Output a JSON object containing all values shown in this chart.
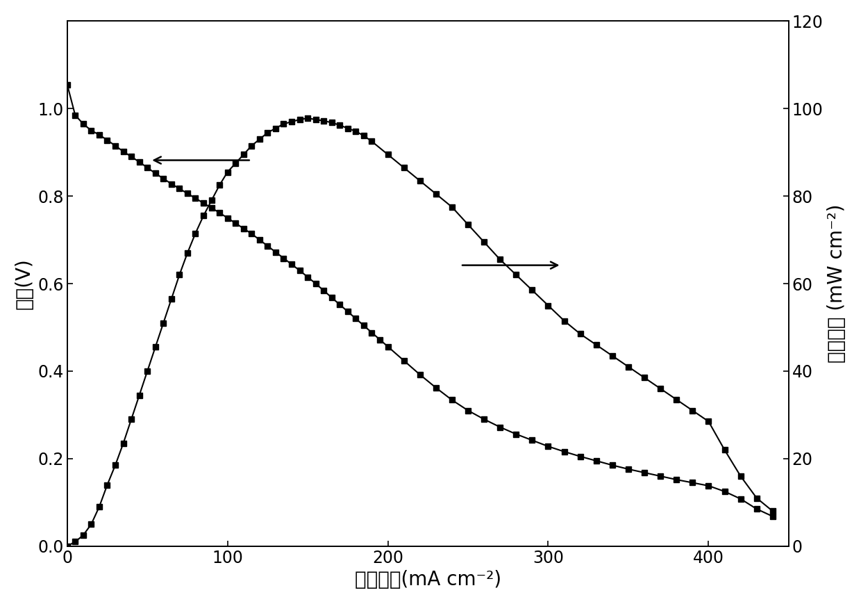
{
  "voltage_current": [
    [
      0,
      1.055
    ],
    [
      5,
      0.985
    ],
    [
      10,
      0.965
    ],
    [
      15,
      0.95
    ],
    [
      20,
      0.94
    ],
    [
      25,
      0.928
    ],
    [
      30,
      0.915
    ],
    [
      35,
      0.902
    ],
    [
      40,
      0.89
    ],
    [
      45,
      0.878
    ],
    [
      50,
      0.865
    ],
    [
      55,
      0.852
    ],
    [
      60,
      0.84
    ],
    [
      65,
      0.828
    ],
    [
      70,
      0.817
    ],
    [
      75,
      0.806
    ],
    [
      80,
      0.795
    ],
    [
      85,
      0.784
    ],
    [
      90,
      0.773
    ],
    [
      95,
      0.762
    ],
    [
      100,
      0.75
    ],
    [
      105,
      0.738
    ],
    [
      110,
      0.726
    ],
    [
      115,
      0.714
    ],
    [
      120,
      0.7
    ],
    [
      125,
      0.686
    ],
    [
      130,
      0.672
    ],
    [
      135,
      0.658
    ],
    [
      140,
      0.644
    ],
    [
      145,
      0.63
    ],
    [
      150,
      0.615
    ],
    [
      155,
      0.6
    ],
    [
      160,
      0.584
    ],
    [
      165,
      0.568
    ],
    [
      170,
      0.552
    ],
    [
      175,
      0.536
    ],
    [
      180,
      0.52
    ],
    [
      185,
      0.504
    ],
    [
      190,
      0.488
    ],
    [
      195,
      0.472
    ],
    [
      200,
      0.456
    ],
    [
      210,
      0.424
    ],
    [
      220,
      0.392
    ],
    [
      230,
      0.362
    ],
    [
      240,
      0.334
    ],
    [
      250,
      0.31
    ],
    [
      260,
      0.29
    ],
    [
      270,
      0.272
    ],
    [
      280,
      0.256
    ],
    [
      290,
      0.242
    ],
    [
      300,
      0.228
    ],
    [
      310,
      0.216
    ],
    [
      320,
      0.205
    ],
    [
      330,
      0.195
    ],
    [
      340,
      0.185
    ],
    [
      350,
      0.176
    ],
    [
      360,
      0.168
    ],
    [
      370,
      0.16
    ],
    [
      380,
      0.152
    ],
    [
      390,
      0.145
    ],
    [
      400,
      0.138
    ],
    [
      410,
      0.125
    ],
    [
      420,
      0.108
    ],
    [
      430,
      0.085
    ],
    [
      440,
      0.068
    ]
  ],
  "power_current": [
    [
      0,
      0.0
    ],
    [
      5,
      1.0
    ],
    [
      10,
      2.5
    ],
    [
      15,
      5.0
    ],
    [
      20,
      9.0
    ],
    [
      25,
      14.0
    ],
    [
      30,
      18.5
    ],
    [
      35,
      23.5
    ],
    [
      40,
      29.0
    ],
    [
      45,
      34.5
    ],
    [
      50,
      40.0
    ],
    [
      55,
      45.5
    ],
    [
      60,
      51.0
    ],
    [
      65,
      56.5
    ],
    [
      70,
      62.0
    ],
    [
      75,
      67.0
    ],
    [
      80,
      71.5
    ],
    [
      85,
      75.5
    ],
    [
      90,
      79.0
    ],
    [
      95,
      82.5
    ],
    [
      100,
      85.5
    ],
    [
      105,
      87.5
    ],
    [
      110,
      89.5
    ],
    [
      115,
      91.5
    ],
    [
      120,
      93.0
    ],
    [
      125,
      94.5
    ],
    [
      130,
      95.5
    ],
    [
      135,
      96.5
    ],
    [
      140,
      97.0
    ],
    [
      145,
      97.5
    ],
    [
      150,
      97.8
    ],
    [
      155,
      97.5
    ],
    [
      160,
      97.2
    ],
    [
      165,
      96.8
    ],
    [
      170,
      96.2
    ],
    [
      175,
      95.5
    ],
    [
      180,
      94.8
    ],
    [
      185,
      93.8
    ],
    [
      190,
      92.5
    ],
    [
      200,
      89.5
    ],
    [
      210,
      86.5
    ],
    [
      220,
      83.5
    ],
    [
      230,
      80.5
    ],
    [
      240,
      77.5
    ],
    [
      250,
      73.5
    ],
    [
      260,
      69.5
    ],
    [
      270,
      65.5
    ],
    [
      280,
      62.0
    ],
    [
      290,
      58.5
    ],
    [
      300,
      55.0
    ],
    [
      310,
      51.5
    ],
    [
      320,
      48.5
    ],
    [
      330,
      46.0
    ],
    [
      340,
      43.5
    ],
    [
      350,
      41.0
    ],
    [
      360,
      38.5
    ],
    [
      370,
      36.0
    ],
    [
      380,
      33.5
    ],
    [
      390,
      31.0
    ],
    [
      400,
      28.5
    ],
    [
      410,
      22.0
    ],
    [
      420,
      16.0
    ],
    [
      430,
      11.0
    ],
    [
      440,
      8.0
    ]
  ],
  "xlim": [
    0,
    450
  ],
  "ylim_left": [
    0,
    1.2
  ],
  "ylim_right": [
    0,
    120
  ],
  "xticks": [
    0,
    100,
    200,
    300,
    400
  ],
  "yticks_left": [
    0.0,
    0.2,
    0.4,
    0.6,
    0.8,
    1.0
  ],
  "yticks_right": [
    0,
    20,
    40,
    60,
    80,
    100,
    120
  ],
  "xlabel": "电流密度(mA cm⁻²)",
  "ylabel_left": "电压(V)",
  "ylabel_right": "功率密度 (mW cm⁻²)",
  "marker": "s",
  "color": "#000000",
  "linewidth": 1.5,
  "markersize": 6,
  "fontsize_label": 20,
  "fontsize_tick": 17,
  "background": "#ffffff"
}
